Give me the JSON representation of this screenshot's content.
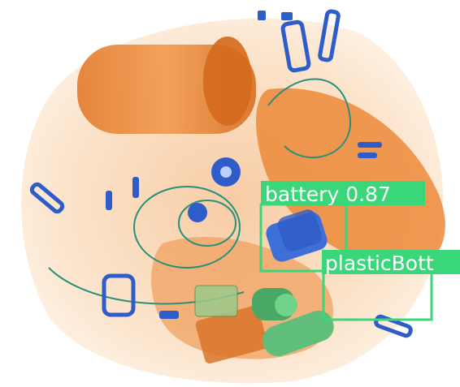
{
  "image": {
    "kind": "x-ray baggage scan",
    "palette": {
      "organic": "#ec8a3a",
      "organic_dark": "#d86f22",
      "metal": "#2e5cc8",
      "metal_dark": "#203f94",
      "mixed": "#5fbf7a",
      "background": "#ffffff",
      "bag_tint": "#fbe2c8"
    }
  },
  "detections": [
    {
      "label": "battery",
      "score": "0.87",
      "text": "battery 0.87",
      "color": "#3ad67a"
    },
    {
      "label": "plasticBottle",
      "text": "plasticBott",
      "color": "#3ad67a"
    }
  ]
}
